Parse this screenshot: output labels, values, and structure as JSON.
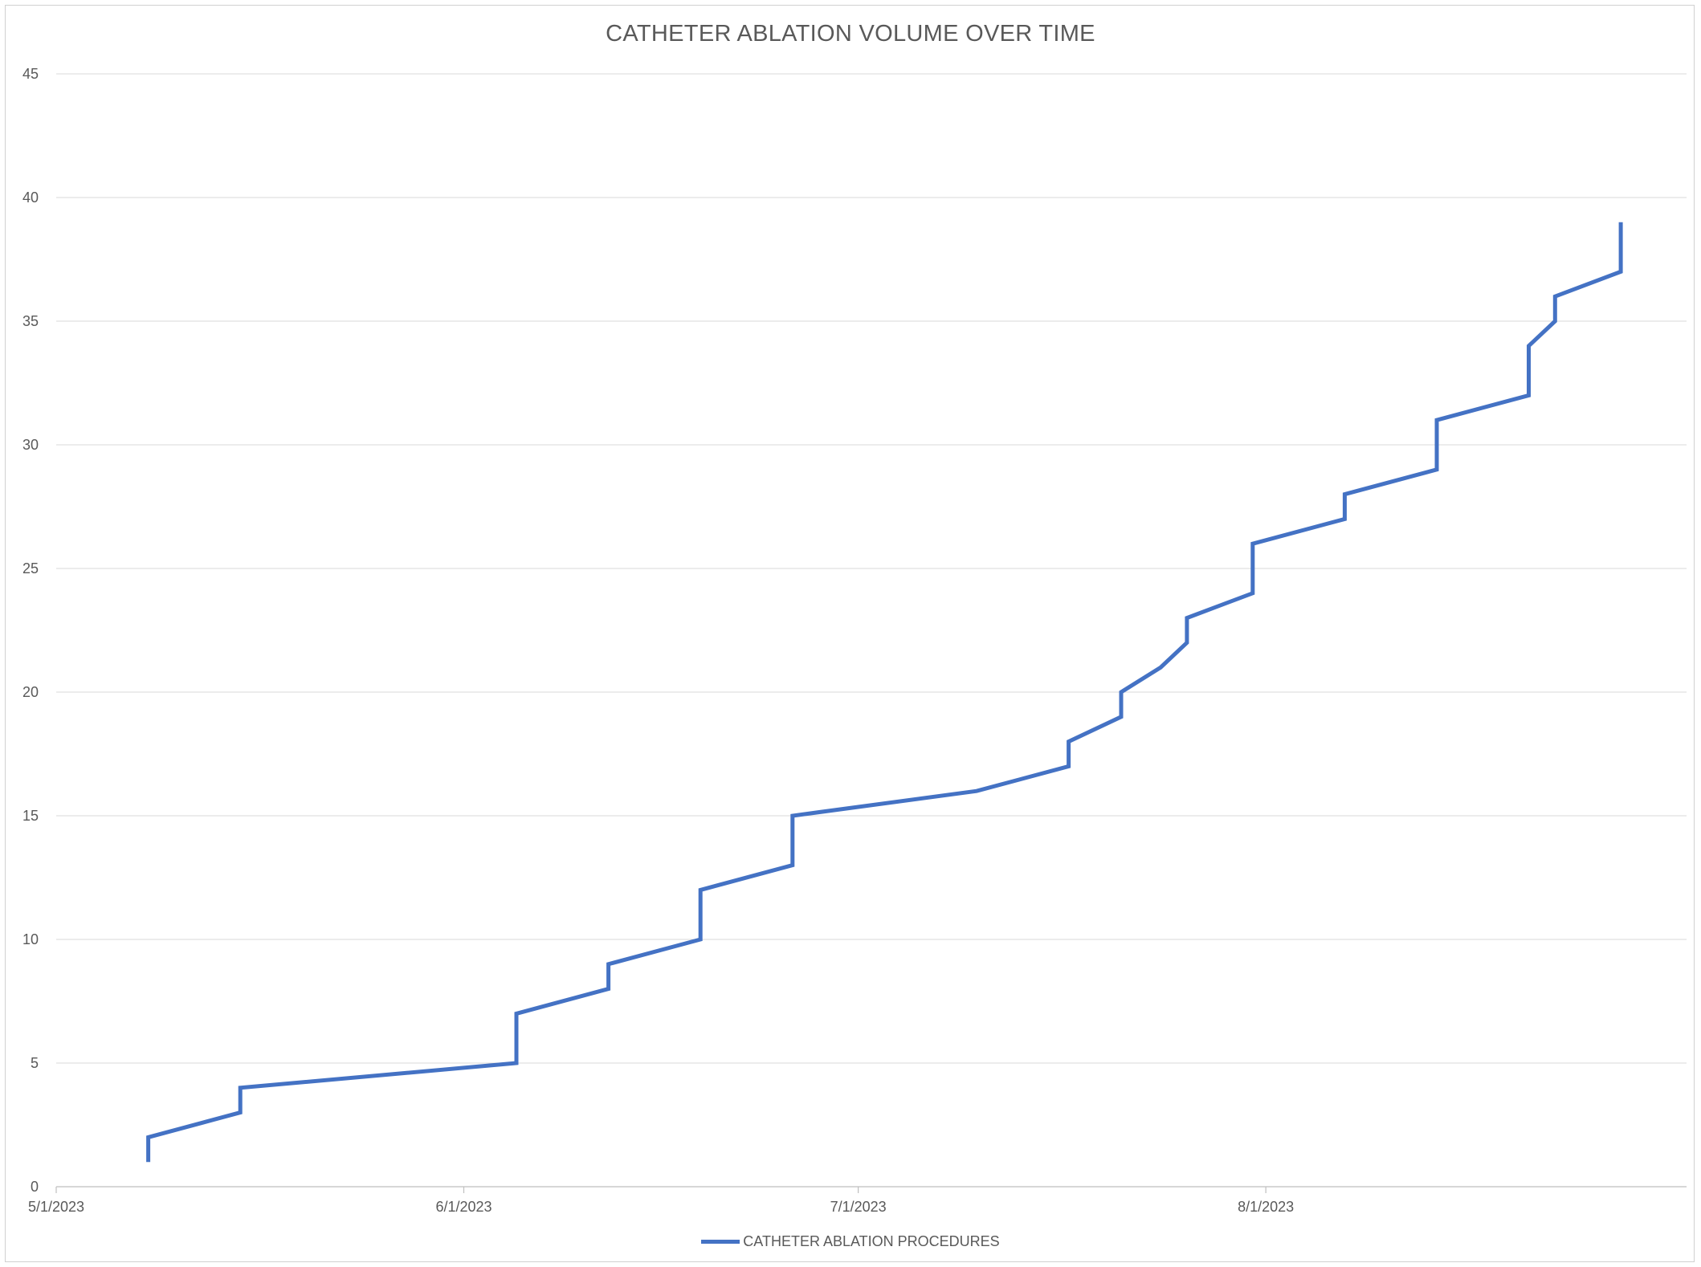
{
  "chart_data": {
    "type": "line",
    "title": "CATHETER ABLATION VOLUME OVER TIME",
    "xlabel": "",
    "ylabel": "",
    "x_axis": {
      "type": "date",
      "range": [
        "2023-05-01",
        "2023-09-02"
      ],
      "ticks": [
        "2023-05-01",
        "2023-06-01",
        "2023-07-01",
        "2023-08-01"
      ],
      "tick_labels": [
        "5/1/2023",
        "6/1/2023",
        "7/1/2023",
        "8/1/2023"
      ]
    },
    "y_axis": {
      "range": [
        0,
        45
      ],
      "ticks": [
        0,
        5,
        10,
        15,
        20,
        25,
        30,
        35,
        40,
        45
      ],
      "tick_labels": [
        "0",
        "5",
        "10",
        "15",
        "20",
        "25",
        "30",
        "35",
        "40",
        "45"
      ]
    },
    "grid": true,
    "legend_position": "bottom",
    "color": "#4472C4",
    "series": [
      {
        "name": "CATHETER ABLATION PROCEDURES",
        "points": [
          [
            "2023-05-08",
            1
          ],
          [
            "2023-05-08",
            2
          ],
          [
            "2023-05-15",
            3
          ],
          [
            "2023-05-15",
            4
          ],
          [
            "2023-06-05",
            5
          ],
          [
            "2023-06-05",
            7
          ],
          [
            "2023-06-12",
            8
          ],
          [
            "2023-06-12",
            9
          ],
          [
            "2023-06-19",
            10
          ],
          [
            "2023-06-19",
            12
          ],
          [
            "2023-06-26",
            13
          ],
          [
            "2023-06-26",
            15
          ],
          [
            "2023-07-10",
            16
          ],
          [
            "2023-07-17",
            17
          ],
          [
            "2023-07-17",
            18
          ],
          [
            "2023-07-21",
            19
          ],
          [
            "2023-07-21",
            20
          ],
          [
            "2023-07-24",
            21
          ],
          [
            "2023-07-26",
            22
          ],
          [
            "2023-07-26",
            23
          ],
          [
            "2023-07-31",
            24
          ],
          [
            "2023-07-31",
            26
          ],
          [
            "2023-08-07",
            27
          ],
          [
            "2023-08-07",
            28
          ],
          [
            "2023-08-14",
            29
          ],
          [
            "2023-08-14",
            31
          ],
          [
            "2023-08-21",
            32
          ],
          [
            "2023-08-21",
            34
          ],
          [
            "2023-08-23",
            35
          ],
          [
            "2023-08-23",
            36
          ],
          [
            "2023-08-28",
            37
          ],
          [
            "2023-08-28",
            39
          ]
        ]
      }
    ]
  }
}
